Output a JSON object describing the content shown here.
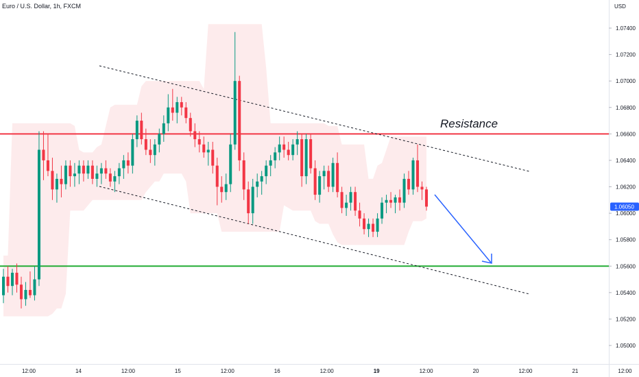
{
  "header": {
    "symbol_title": "Euro / U.S. Dollar, 1h, FXCM"
  },
  "chart_data": {
    "type": "candlestick",
    "title": "Euro / U.S. Dollar, 1h, FXCM",
    "currency_label": "USD",
    "y_ticks": [
      "1.07400",
      "1.07200",
      "1.07000",
      "1.06800",
      "1.06600",
      "1.06400",
      "1.06200",
      "1.06000",
      "1.05800",
      "1.05600",
      "1.05400",
      "1.05200",
      "1.05000"
    ],
    "ylim": [
      1.0485,
      1.0755
    ],
    "x_ticks": [
      {
        "label": "12:00",
        "bold": false
      },
      {
        "label": "14",
        "bold": false
      },
      {
        "label": "12:00",
        "bold": false
      },
      {
        "label": "15",
        "bold": false
      },
      {
        "label": "12:00",
        "bold": false
      },
      {
        "label": "16",
        "bold": false
      },
      {
        "label": "12:00",
        "bold": false
      },
      {
        "label": "19",
        "bold": true
      },
      {
        "label": "12:00",
        "bold": false
      },
      {
        "label": "20",
        "bold": false
      },
      {
        "label": "12:00",
        "bold": false
      },
      {
        "label": "21",
        "bold": false
      },
      {
        "label": "12:00",
        "bold": false
      }
    ],
    "current_price": "1.06050",
    "colors": {
      "up": "#089981",
      "down": "#f23645",
      "band": "#fde7e9",
      "resistance": "#f23645",
      "support": "#22ab34",
      "arrow": "#2962ff",
      "badge": "#2962ff"
    },
    "resistance": {
      "label": "Resistance",
      "price": 1.066
    },
    "support": {
      "price": 1.056
    },
    "candles": [
      [
        1.0538,
        1.0558,
        1.0532,
        1.0552
      ],
      [
        1.0552,
        1.056,
        1.054,
        1.0545
      ],
      [
        1.0545,
        1.0558,
        1.0538,
        1.0555
      ],
      [
        1.0555,
        1.0562,
        1.054,
        1.0546
      ],
      [
        1.0546,
        1.0552,
        1.0528,
        1.0535
      ],
      [
        1.0535,
        1.0548,
        1.053,
        1.0542
      ],
      [
        1.0542,
        1.0556,
        1.0536,
        1.0538
      ],
      [
        1.0538,
        1.056,
        1.0534,
        1.055
      ],
      [
        1.055,
        1.0662,
        1.0545,
        1.0648
      ],
      [
        1.0648,
        1.0662,
        1.0625,
        1.064
      ],
      [
        1.064,
        1.066,
        1.0628,
        1.0632
      ],
      [
        1.0632,
        1.0642,
        1.061,
        1.0618
      ],
      [
        1.0618,
        1.063,
        1.0608,
        1.0626
      ],
      [
        1.0626,
        1.0636,
        1.0612,
        1.0622
      ],
      [
        1.0622,
        1.064,
        1.0618,
        1.0636
      ],
      [
        1.0636,
        1.064,
        1.062,
        1.0628
      ],
      [
        1.0628,
        1.0638,
        1.062,
        1.063
      ],
      [
        1.063,
        1.064,
        1.0622,
        1.0636
      ],
      [
        1.0636,
        1.064,
        1.0624,
        1.063
      ],
      [
        1.063,
        1.064,
        1.0626,
        1.0636
      ],
      [
        1.0636,
        1.064,
        1.0622,
        1.0626
      ],
      [
        1.0626,
        1.0636,
        1.062,
        1.063
      ],
      [
        1.063,
        1.0638,
        1.0622,
        1.0634
      ],
      [
        1.0634,
        1.064,
        1.0626,
        1.063
      ],
      [
        1.063,
        1.0634,
        1.062,
        1.0624
      ],
      [
        1.0624,
        1.0632,
        1.0616,
        1.0628
      ],
      [
        1.0628,
        1.0638,
        1.0622,
        1.0634
      ],
      [
        1.0634,
        1.0644,
        1.0626,
        1.064
      ],
      [
        1.064,
        1.0646,
        1.063,
        1.0636
      ],
      [
        1.0636,
        1.066,
        1.063,
        1.0656
      ],
      [
        1.0656,
        1.0674,
        1.065,
        1.067
      ],
      [
        1.067,
        1.0676,
        1.0652,
        1.0656
      ],
      [
        1.0656,
        1.0664,
        1.0644,
        1.0648
      ],
      [
        1.0648,
        1.0656,
        1.0638,
        1.0644
      ],
      [
        1.0644,
        1.0656,
        1.0636,
        1.0652
      ],
      [
        1.0652,
        1.0664,
        1.0646,
        1.066
      ],
      [
        1.066,
        1.0674,
        1.0654,
        1.0668
      ],
      [
        1.0668,
        1.069,
        1.0662,
        1.068
      ],
      [
        1.068,
        1.0694,
        1.067,
        1.0676
      ],
      [
        1.0676,
        1.0688,
        1.0668,
        1.0684
      ],
      [
        1.0684,
        1.0688,
        1.0674,
        1.068
      ],
      [
        1.068,
        1.0684,
        1.0668,
        1.0672
      ],
      [
        1.0672,
        1.0676,
        1.0658,
        1.0662
      ],
      [
        1.0662,
        1.0668,
        1.065,
        1.0656
      ],
      [
        1.0656,
        1.0662,
        1.0646,
        1.0652
      ],
      [
        1.0652,
        1.0658,
        1.0642,
        1.0646
      ],
      [
        1.0646,
        1.0654,
        1.0636,
        1.0648
      ],
      [
        1.0648,
        1.0654,
        1.063,
        1.0636
      ],
      [
        1.0636,
        1.0642,
        1.0606,
        1.062
      ],
      [
        1.062,
        1.0628,
        1.0608,
        1.0616
      ],
      [
        1.0616,
        1.063,
        1.061,
        1.0622
      ],
      [
        1.0622,
        1.066,
        1.0616,
        1.0652
      ],
      [
        1.0652,
        1.0737,
        1.0648,
        1.07
      ],
      [
        1.07,
        1.0704,
        1.0632,
        1.064
      ],
      [
        1.064,
        1.0646,
        1.061,
        1.0618
      ],
      [
        1.0618,
        1.0624,
        1.0592,
        1.06
      ],
      [
        1.06,
        1.0626,
        1.0592,
        1.062
      ],
      [
        1.062,
        1.063,
        1.0612,
        1.0624
      ],
      [
        1.0624,
        1.0632,
        1.0614,
        1.0628
      ],
      [
        1.0628,
        1.064,
        1.0622,
        1.0636
      ],
      [
        1.0636,
        1.0644,
        1.0628,
        1.064
      ],
      [
        1.064,
        1.065,
        1.0634,
        1.0646
      ],
      [
        1.0646,
        1.0658,
        1.064,
        1.0652
      ],
      [
        1.0652,
        1.0658,
        1.0642,
        1.0648
      ],
      [
        1.0648,
        1.0654,
        1.064,
        1.0644
      ],
      [
        1.0644,
        1.0656,
        1.064,
        1.0652
      ],
      [
        1.0652,
        1.0662,
        1.0644,
        1.0656
      ],
      [
        1.0656,
        1.066,
        1.062,
        1.0628
      ],
      [
        1.0628,
        1.066,
        1.0622,
        1.0656
      ],
      [
        1.0656,
        1.066,
        1.063,
        1.0634
      ],
      [
        1.0634,
        1.064,
        1.061,
        1.0614
      ],
      [
        1.0614,
        1.0632,
        1.0608,
        1.0628
      ],
      [
        1.0628,
        1.0636,
        1.0618,
        1.0632
      ],
      [
        1.0632,
        1.0636,
        1.0616,
        1.062
      ],
      [
        1.062,
        1.0642,
        1.0616,
        1.0638
      ],
      [
        1.0638,
        1.0646,
        1.0612,
        1.0616
      ],
      [
        1.0616,
        1.062,
        1.06,
        1.0604
      ],
      [
        1.0604,
        1.0614,
        1.0598,
        1.0608
      ],
      [
        1.0608,
        1.062,
        1.0602,
        1.0616
      ],
      [
        1.0616,
        1.062,
        1.0598,
        1.0602
      ],
      [
        1.0602,
        1.0608,
        1.059,
        1.0596
      ],
      [
        1.0596,
        1.06,
        1.0584,
        1.0588
      ],
      [
        1.0588,
        1.0596,
        1.0582,
        1.0592
      ],
      [
        1.0592,
        1.0596,
        1.0582,
        1.0586
      ],
      [
        1.0586,
        1.06,
        1.0582,
        1.0596
      ],
      [
        1.0596,
        1.0612,
        1.0592,
        1.0608
      ],
      [
        1.0608,
        1.0614,
        1.06,
        1.061
      ],
      [
        1.061,
        1.0616,
        1.0604,
        1.0608
      ],
      [
        1.0608,
        1.0614,
        1.06,
        1.0612
      ],
      [
        1.0612,
        1.0618,
        1.0602,
        1.0608
      ],
      [
        1.0608,
        1.063,
        1.0604,
        1.0626
      ],
      [
        1.0626,
        1.0632,
        1.0614,
        1.0618
      ],
      [
        1.0618,
        1.0642,
        1.0614,
        1.064
      ],
      [
        1.064,
        1.0652,
        1.0616,
        1.062
      ],
      [
        1.062,
        1.0624,
        1.061,
        1.0618
      ],
      [
        1.0618,
        1.062,
        1.0602,
        1.0605
      ]
    ]
  }
}
